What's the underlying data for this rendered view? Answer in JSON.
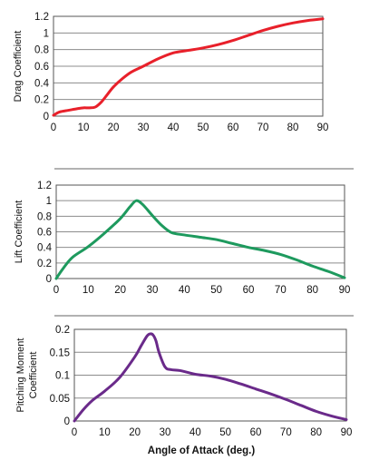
{
  "chart_data": [
    {
      "type": "line",
      "ylabel": "Drag Coefficient",
      "xlabel": "",
      "xlim": [
        0,
        90
      ],
      "ylim": [
        0,
        1.2
      ],
      "xticks": [
        "0",
        "10",
        "20",
        "30",
        "40",
        "50",
        "60",
        "70",
        "80",
        "90"
      ],
      "yticks": [
        "0",
        "0.2",
        "0.4",
        "0.6",
        "0.8",
        "1",
        "1.2"
      ],
      "grid": "horizontal",
      "series": [
        {
          "color": "#e8202a",
          "x": [
            0,
            2,
            5,
            8,
            10,
            12,
            14,
            16,
            18,
            20,
            23,
            26,
            30,
            35,
            40,
            45,
            50,
            55,
            60,
            65,
            70,
            75,
            80,
            85,
            90
          ],
          "y": [
            0.01,
            0.05,
            0.07,
            0.09,
            0.1,
            0.1,
            0.11,
            0.17,
            0.26,
            0.35,
            0.45,
            0.53,
            0.6,
            0.69,
            0.76,
            0.79,
            0.82,
            0.86,
            0.91,
            0.97,
            1.03,
            1.08,
            1.12,
            1.15,
            1.17
          ]
        }
      ]
    },
    {
      "type": "line",
      "ylabel": "Lift Coefficient",
      "xlabel": "",
      "xlim": [
        0,
        90
      ],
      "ylim": [
        0,
        1.2
      ],
      "xticks": [
        "0",
        "10",
        "20",
        "30",
        "40",
        "50",
        "60",
        "70",
        "80",
        "90"
      ],
      "yticks": [
        "0",
        "0.2",
        "0.4",
        "0.6",
        "0.8",
        "1",
        "1.2"
      ],
      "grid": "horizontal",
      "series": [
        {
          "color": "#1e9a5e",
          "x": [
            0,
            2,
            5,
            10,
            15,
            20,
            23,
            25,
            27,
            30,
            33,
            36,
            40,
            45,
            50,
            55,
            60,
            65,
            70,
            75,
            80,
            85,
            90
          ],
          "y": [
            0.0,
            0.12,
            0.27,
            0.41,
            0.58,
            0.77,
            0.92,
            1.0,
            0.95,
            0.81,
            0.68,
            0.59,
            0.56,
            0.53,
            0.5,
            0.45,
            0.4,
            0.36,
            0.31,
            0.24,
            0.16,
            0.09,
            0.01
          ]
        }
      ]
    },
    {
      "type": "line",
      "ylabel": "Pitching Moment Coefficient",
      "xlabel": "Angle of Attack (deg.)",
      "xlim": [
        0,
        90
      ],
      "ylim": [
        0,
        0.2
      ],
      "xticks": [
        "0",
        "10",
        "20",
        "30",
        "40",
        "50",
        "60",
        "70",
        "80",
        "90"
      ],
      "yticks": [
        "0",
        "0.05",
        "0.1",
        "0.15",
        "0.2"
      ],
      "grid": "horizontal",
      "series": [
        {
          "color": "#6a2a8a",
          "x": [
            0,
            3,
            6,
            10,
            15,
            20,
            22,
            24,
            25,
            26,
            27,
            28,
            30,
            32,
            35,
            40,
            45,
            50,
            55,
            60,
            65,
            70,
            75,
            80,
            85,
            90
          ],
          "y": [
            0.0,
            0.025,
            0.045,
            0.065,
            0.095,
            0.14,
            0.163,
            0.185,
            0.19,
            0.188,
            0.175,
            0.15,
            0.118,
            0.112,
            0.11,
            0.102,
            0.098,
            0.091,
            0.081,
            0.07,
            0.059,
            0.047,
            0.034,
            0.021,
            0.011,
            0.003
          ]
        }
      ]
    }
  ]
}
